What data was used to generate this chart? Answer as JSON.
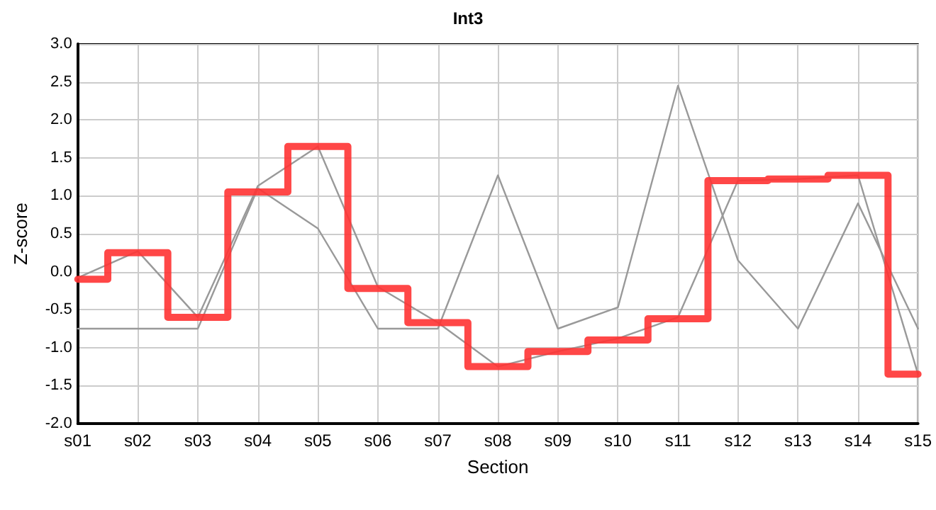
{
  "chart_data": {
    "type": "line",
    "title": "Int3",
    "xlabel": "Section",
    "ylabel": "Z-score",
    "categories": [
      "s01",
      "s02",
      "s03",
      "s04",
      "s05",
      "s06",
      "s07",
      "s08",
      "s09",
      "s10",
      "s11",
      "s12",
      "s13",
      "s14",
      "s15"
    ],
    "series": [
      {
        "type": "line",
        "color": "#999999",
        "values": [
          -0.75,
          -0.75,
          -0.75,
          1.1,
          0.57,
          -0.75,
          -0.75,
          1.27,
          -0.75,
          -0.47,
          2.45,
          0.15,
          -0.75,
          0.9,
          -0.75
        ]
      },
      {
        "type": "line",
        "color": "#999999",
        "values": [
          -0.08,
          0.27,
          -0.6,
          1.13,
          1.65,
          -0.2,
          -0.67,
          -1.25,
          -1.05,
          -0.88,
          -0.6,
          1.2,
          1.22,
          1.27,
          -1.35
        ]
      },
      {
        "type": "step",
        "color": "#ff3333",
        "values": [
          -0.1,
          0.25,
          -0.6,
          1.05,
          1.65,
          -0.22,
          -0.67,
          -1.25,
          -1.05,
          -0.9,
          -0.62,
          1.2,
          1.22,
          1.27,
          -1.35
        ]
      }
    ],
    "ylim": [
      -2,
      3
    ],
    "yticks": [
      {
        "value": -2,
        "label": "-2.0"
      },
      {
        "value": -1.5,
        "label": "-1.5"
      },
      {
        "value": -1,
        "label": "-1.0"
      },
      {
        "value": -0.5,
        "label": "-0.5"
      },
      {
        "value": 0,
        "label": "0.0"
      },
      {
        "value": 0.5,
        "label": "0.5"
      },
      {
        "value": 1,
        "label": "1.0"
      },
      {
        "value": 1.5,
        "label": "1.5"
      },
      {
        "value": 2,
        "label": "2.0"
      },
      {
        "value": 2.5,
        "label": "2.5"
      },
      {
        "value": 3,
        "label": "3.0"
      }
    ],
    "grid": true,
    "marker": "none",
    "line_style": "solid"
  }
}
